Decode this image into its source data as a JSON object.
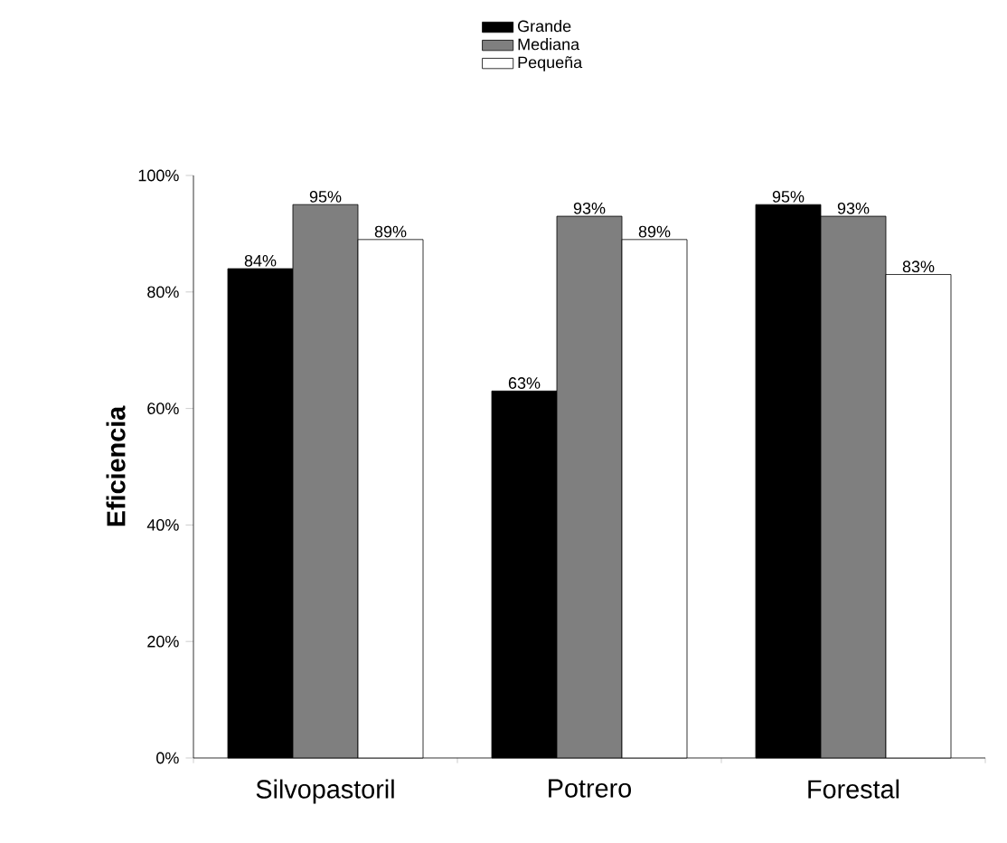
{
  "chart_data": {
    "type": "bar",
    "ylabel": "Eficiencia",
    "categories": [
      "Silvopastoril",
      "Potrero",
      "Forestal"
    ],
    "series": [
      {
        "name": "Grande",
        "color": "#000000",
        "values": [
          84,
          63,
          95
        ],
        "value_labels": [
          "84%",
          "63%",
          "95%"
        ]
      },
      {
        "name": "Mediana",
        "color": "#7f7f7f",
        "values": [
          95,
          93,
          93
        ],
        "value_labels": [
          "95%",
          "93%",
          "93%"
        ]
      },
      {
        "name": "Pequeña",
        "color": "#ffffff",
        "values": [
          89,
          89,
          83
        ],
        "value_labels": [
          "89%",
          "89%",
          "83%"
        ]
      }
    ],
    "ylim": [
      0,
      100
    ],
    "yticks": [
      {
        "value": 0,
        "label": "0%"
      },
      {
        "value": 20,
        "label": "20%"
      },
      {
        "value": 40,
        "label": "40%"
      },
      {
        "value": 60,
        "label": "60%"
      },
      {
        "value": 80,
        "label": "80%"
      },
      {
        "value": 100,
        "label": "100%"
      }
    ],
    "grid": false,
    "legend": "top"
  }
}
